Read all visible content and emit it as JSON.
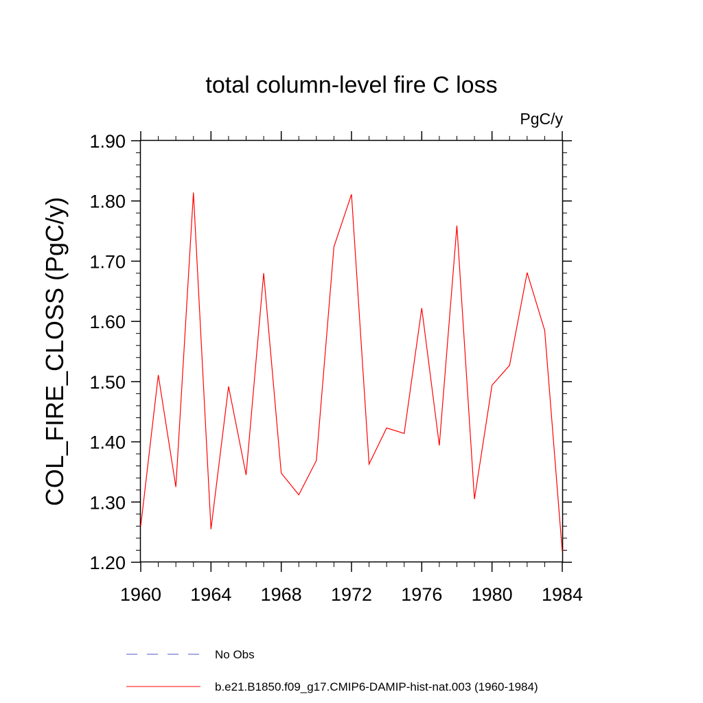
{
  "chart_data": {
    "type": "line",
    "title": "total column-level fire C loss",
    "units_label": "PgC/y",
    "ylabel": "COL_FIRE_CLOSS  (PgC/y)",
    "xlabel": "",
    "xlim": [
      1960,
      1984
    ],
    "ylim": [
      1.2,
      1.9
    ],
    "x_ticks": [
      1960,
      1964,
      1968,
      1972,
      1976,
      1980,
      1984
    ],
    "y_ticks": [
      "1.20",
      "1.30",
      "1.40",
      "1.50",
      "1.60",
      "1.70",
      "1.80",
      "1.90"
    ],
    "x": [
      1960,
      1961,
      1962,
      1963,
      1964,
      1965,
      1966,
      1967,
      1968,
      1969,
      1970,
      1971,
      1972,
      1973,
      1974,
      1975,
      1976,
      1977,
      1978,
      1979,
      1980,
      1981,
      1982,
      1983,
      1984
    ],
    "series": [
      {
        "name": "b.e21.B1850.f09_g17.CMIP6-DAMIP-hist-nat.003 (1960-1984)",
        "color": "#ff0000",
        "values": [
          1.26,
          1.511,
          1.325,
          1.814,
          1.255,
          1.492,
          1.345,
          1.68,
          1.348,
          1.312,
          1.369,
          1.724,
          1.811,
          1.363,
          1.423,
          1.414,
          1.622,
          1.394,
          1.759,
          1.305,
          1.494,
          1.527,
          1.681,
          1.585,
          1.218
        ]
      }
    ],
    "legend": [
      {
        "label": "No Obs",
        "color": "#5050c8",
        "style": "dashed"
      },
      {
        "label": "b.e21.B1850.f09_g17.CMIP6-DAMIP-hist-nat.003 (1960-1984)",
        "color": "#ff0000",
        "style": "solid"
      }
    ],
    "legend_position": "bottom",
    "grid": false
  }
}
